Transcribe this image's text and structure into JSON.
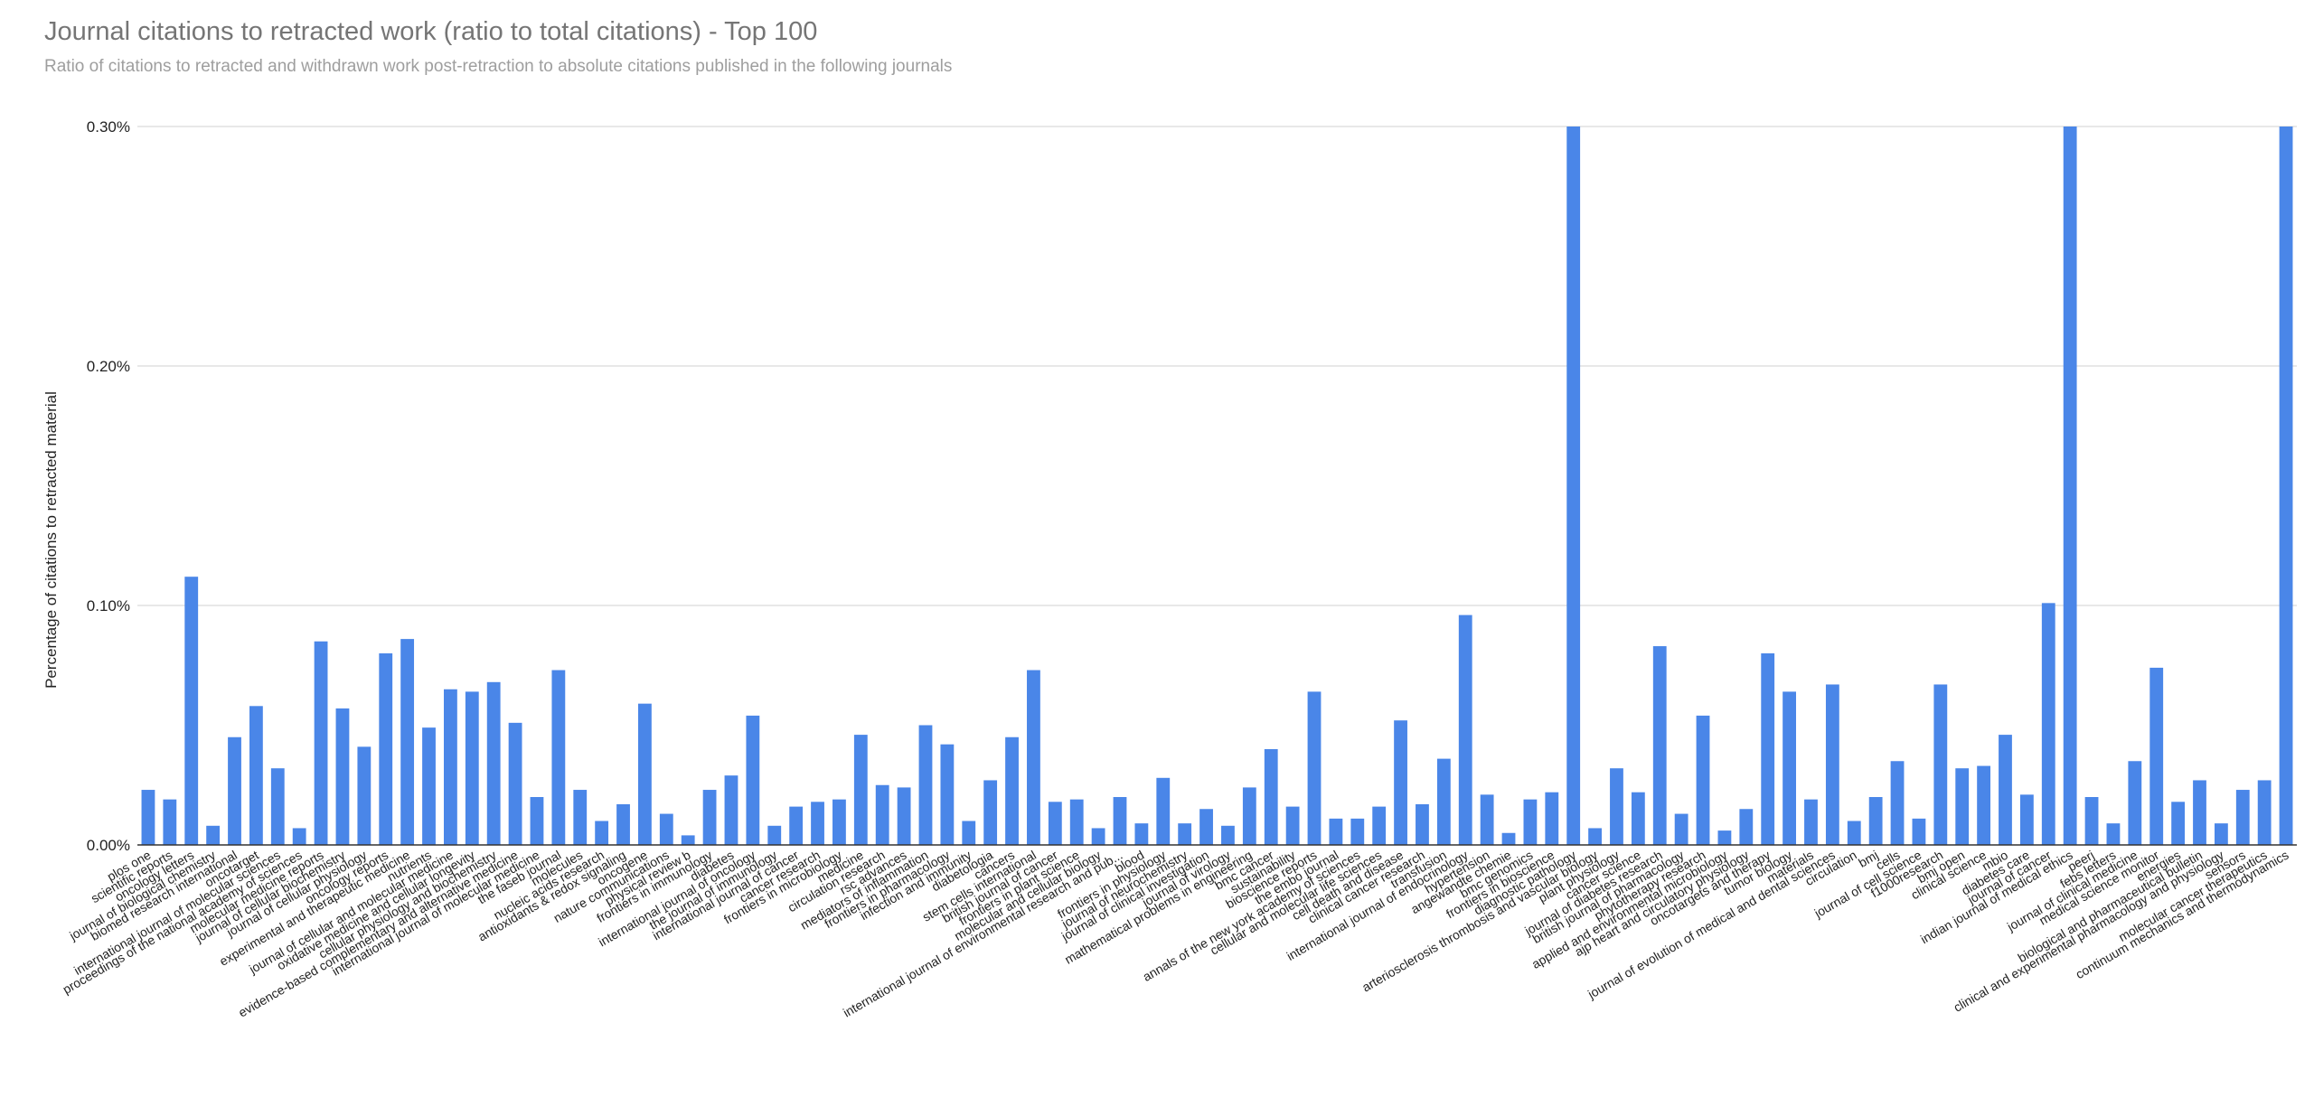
{
  "chart_data": {
    "type": "bar",
    "title": "Journal citations to retracted work (ratio to total citations) - Top 100",
    "subtitle": "Ratio of citations to retracted and withdrawn work post-retraction to absolute citations published in the following journals",
    "xlabel": "",
    "ylabel": "Percentage of citations to retracted material",
    "ylim": [
      0,
      0.3
    ],
    "yticks": [
      "0.00%",
      "0.10%",
      "0.20%",
      "0.30%"
    ],
    "grid": true,
    "bar_color": "#4a86e8",
    "categories": [
      "plos one",
      "scientific reports",
      "oncology letters",
      "journal of biological chemistry",
      "biomed research international",
      "oncotarget",
      "international journal of molecular sciences",
      "proceedings of the national academy of sciences",
      "molecular medicine reports",
      "journal of cellular biochemistry",
      "journal of cellular physiology",
      "oncology reports",
      "experimental and therapeutic medicine",
      "nutrients",
      "journal of cellular and molecular medicine",
      "oxidative medicine and cellular longevity",
      "cellular physiology and biochemistry",
      "evidence-based complementary and alternative medicine",
      "international journal of molecular medicine",
      "the faseb journal",
      "molecules",
      "nucleic acids research",
      "antioxidants & redox signaling",
      "oncogene",
      "nature communications",
      "physical review b",
      "frontiers in immunology",
      "diabetes",
      "international journal of oncology",
      "the journal of immunology",
      "international journal of cancer",
      "cancer research",
      "frontiers in microbiology",
      "medicine",
      "circulation research",
      "rsc advances",
      "mediators of inflammation",
      "frontiers in pharmacology",
      "infection and immunity",
      "diabetologia",
      "cancers",
      "stem cells international",
      "british journal of cancer",
      "frontiers in plant science",
      "molecular and cellular biology",
      "international journal of environmental research and pub...",
      "blood",
      "frontiers in physiology",
      "journal of neurochemistry",
      "journal of clinical investigation",
      "journal of virology",
      "mathematical problems in engineering",
      "bmc cancer",
      "sustainability",
      "bioscience reports",
      "the embo journal",
      "annals of the new york academy of sciences",
      "cellular and molecular life sciences",
      "cell death and disease",
      "clinical cancer research",
      "transfusion",
      "international journal of endocrinology",
      "hypertension",
      "angewandte chemie",
      "bmc genomics",
      "frontiers in bioscience",
      "diagnostic pathology",
      "arteriosclerosis thrombosis and vascular biology",
      "plant physiology",
      "cancer science",
      "journal of diabetes research",
      "british journal of pharmacology",
      "phytotherapy research",
      "applied and environmental microbiology",
      "ajp heart and circulatory physiology",
      "oncotargets and therapy",
      "tumor biology",
      "materials",
      "journal of evolution of medical and dental sciences",
      "circulation",
      "bmj",
      "cells",
      "journal of cell science",
      "f1000research",
      "bmj open",
      "clinical science",
      "mbio",
      "diabetes care",
      "journal of cancer",
      "indian journal of medical ethics",
      "peerj",
      "febs letters",
      "journal of clinical medicine",
      "medical science monitor",
      "energies",
      "biological and pharmaceutical bulletin",
      "clinical and experimental pharmacology and physiology",
      "sensors",
      "molecular cancer therapeutics",
      "continuum mechanics and thermodynamics"
    ],
    "values": [
      0.023,
      0.019,
      0.112,
      0.008,
      0.045,
      0.058,
      0.032,
      0.007,
      0.085,
      0.057,
      0.041,
      0.08,
      0.086,
      0.049,
      0.065,
      0.064,
      0.068,
      0.051,
      0.02,
      0.073,
      0.023,
      0.01,
      0.017,
      0.059,
      0.013,
      0.004,
      0.023,
      0.029,
      0.054,
      0.008,
      0.016,
      0.018,
      0.019,
      0.046,
      0.025,
      0.024,
      0.05,
      0.042,
      0.01,
      0.027,
      0.045,
      0.073,
      0.018,
      0.019,
      0.007,
      0.02,
      0.009,
      0.028,
      0.009,
      0.015,
      0.008,
      0.024,
      0.04,
      0.016,
      0.064,
      0.011,
      0.011,
      0.016,
      0.052,
      0.017,
      0.036,
      0.096,
      0.021,
      0.005,
      0.019,
      0.022,
      0.3,
      0.007,
      0.032,
      0.022,
      0.083,
      0.013,
      0.054,
      0.006,
      0.015,
      0.08,
      0.064,
      0.019,
      0.067,
      0.01,
      0.02,
      0.035,
      0.011,
      0.067,
      0.032,
      0.033,
      0.046,
      0.021,
      0.101,
      0.3,
      0.02,
      0.009,
      0.035,
      0.074,
      0.018,
      0.027,
      0.009,
      0.023,
      0.027,
      0.3
    ]
  }
}
